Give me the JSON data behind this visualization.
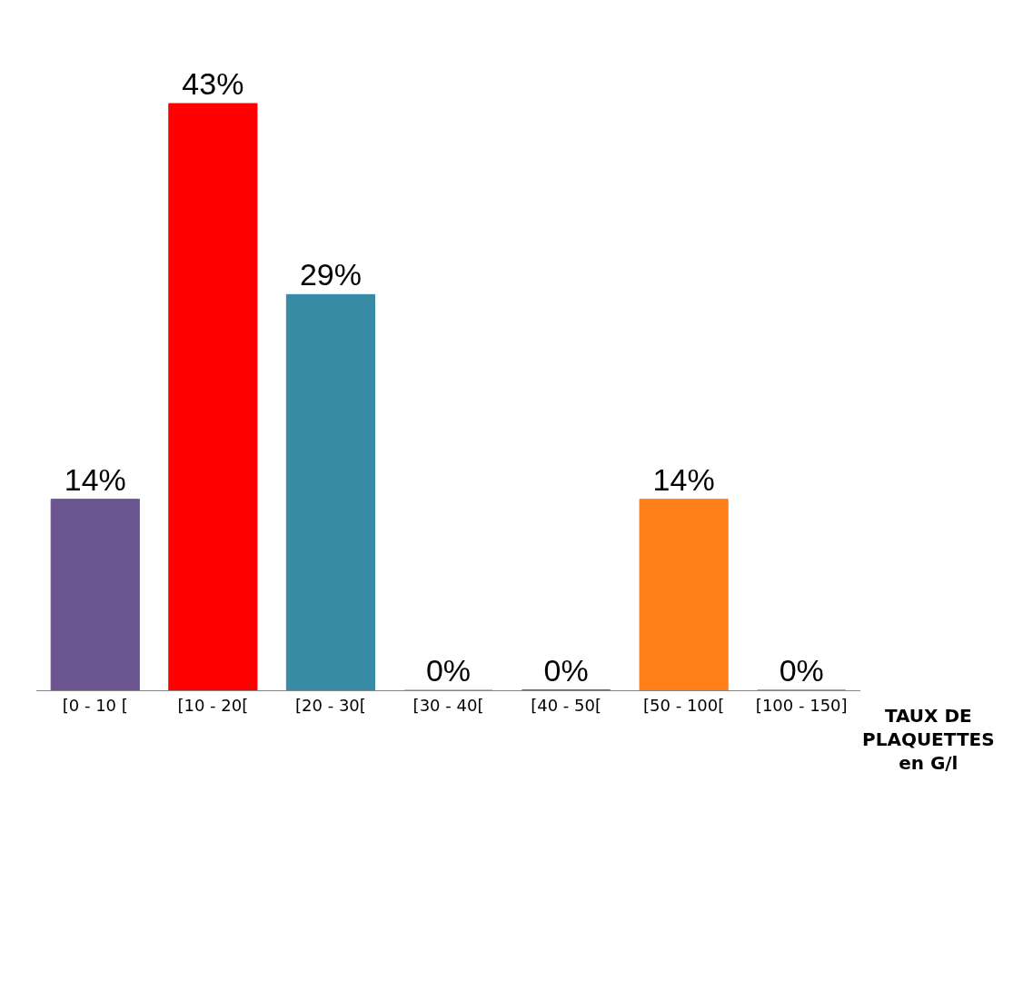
{
  "chart_data": {
    "type": "bar",
    "categories": [
      "[0 - 10 [",
      "[10 - 20[",
      "[20 - 30[",
      "[30 - 40[",
      "[40 - 50[",
      "[50 - 100[",
      "[100 - 150]"
    ],
    "values": [
      14,
      43,
      29,
      0,
      0,
      14,
      0
    ],
    "value_labels": [
      "14%",
      "43%",
      "29%",
      "0%",
      "0%",
      "14%",
      "0%"
    ],
    "colors": [
      "#6b5591",
      "#ff0000",
      "#378ba5",
      "#c4c000",
      "#333333",
      "#ff7f19",
      "#6e9c3c"
    ],
    "xlabel": "TAUX DE PLAQUETTES en G/l",
    "tick_labels": "x",
    "grid": false
  }
}
